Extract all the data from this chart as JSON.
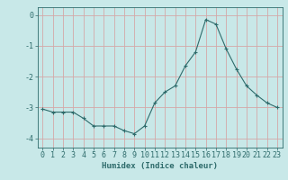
{
  "x": [
    0,
    1,
    2,
    3,
    4,
    5,
    6,
    7,
    8,
    9,
    10,
    11,
    12,
    13,
    14,
    15,
    16,
    17,
    18,
    19,
    20,
    21,
    22,
    23
  ],
  "y": [
    -3.05,
    -3.15,
    -3.15,
    -3.15,
    -3.35,
    -3.6,
    -3.6,
    -3.6,
    -3.75,
    -3.85,
    -3.6,
    -2.85,
    -2.5,
    -2.3,
    -1.65,
    -1.2,
    -0.15,
    -0.3,
    -1.1,
    -1.75,
    -2.3,
    -2.6,
    -2.85,
    -3.0
  ],
  "line_color": "#2e6b6b",
  "marker": "+",
  "marker_size": 3,
  "bg_color": "#c8e8e8",
  "grid_color": "#d4a8a8",
  "xlabel": "Humidex (Indice chaleur)",
  "xlim": [
    -0.5,
    23.5
  ],
  "ylim": [
    -4.3,
    0.25
  ],
  "yticks": [
    0,
    -1,
    -2,
    -3,
    -4
  ],
  "xticks": [
    0,
    1,
    2,
    3,
    4,
    5,
    6,
    7,
    8,
    9,
    10,
    11,
    12,
    13,
    14,
    15,
    16,
    17,
    18,
    19,
    20,
    21,
    22,
    23
  ],
  "tick_color": "#2e6b6b",
  "label_fontsize": 6.5,
  "tick_fontsize": 6
}
